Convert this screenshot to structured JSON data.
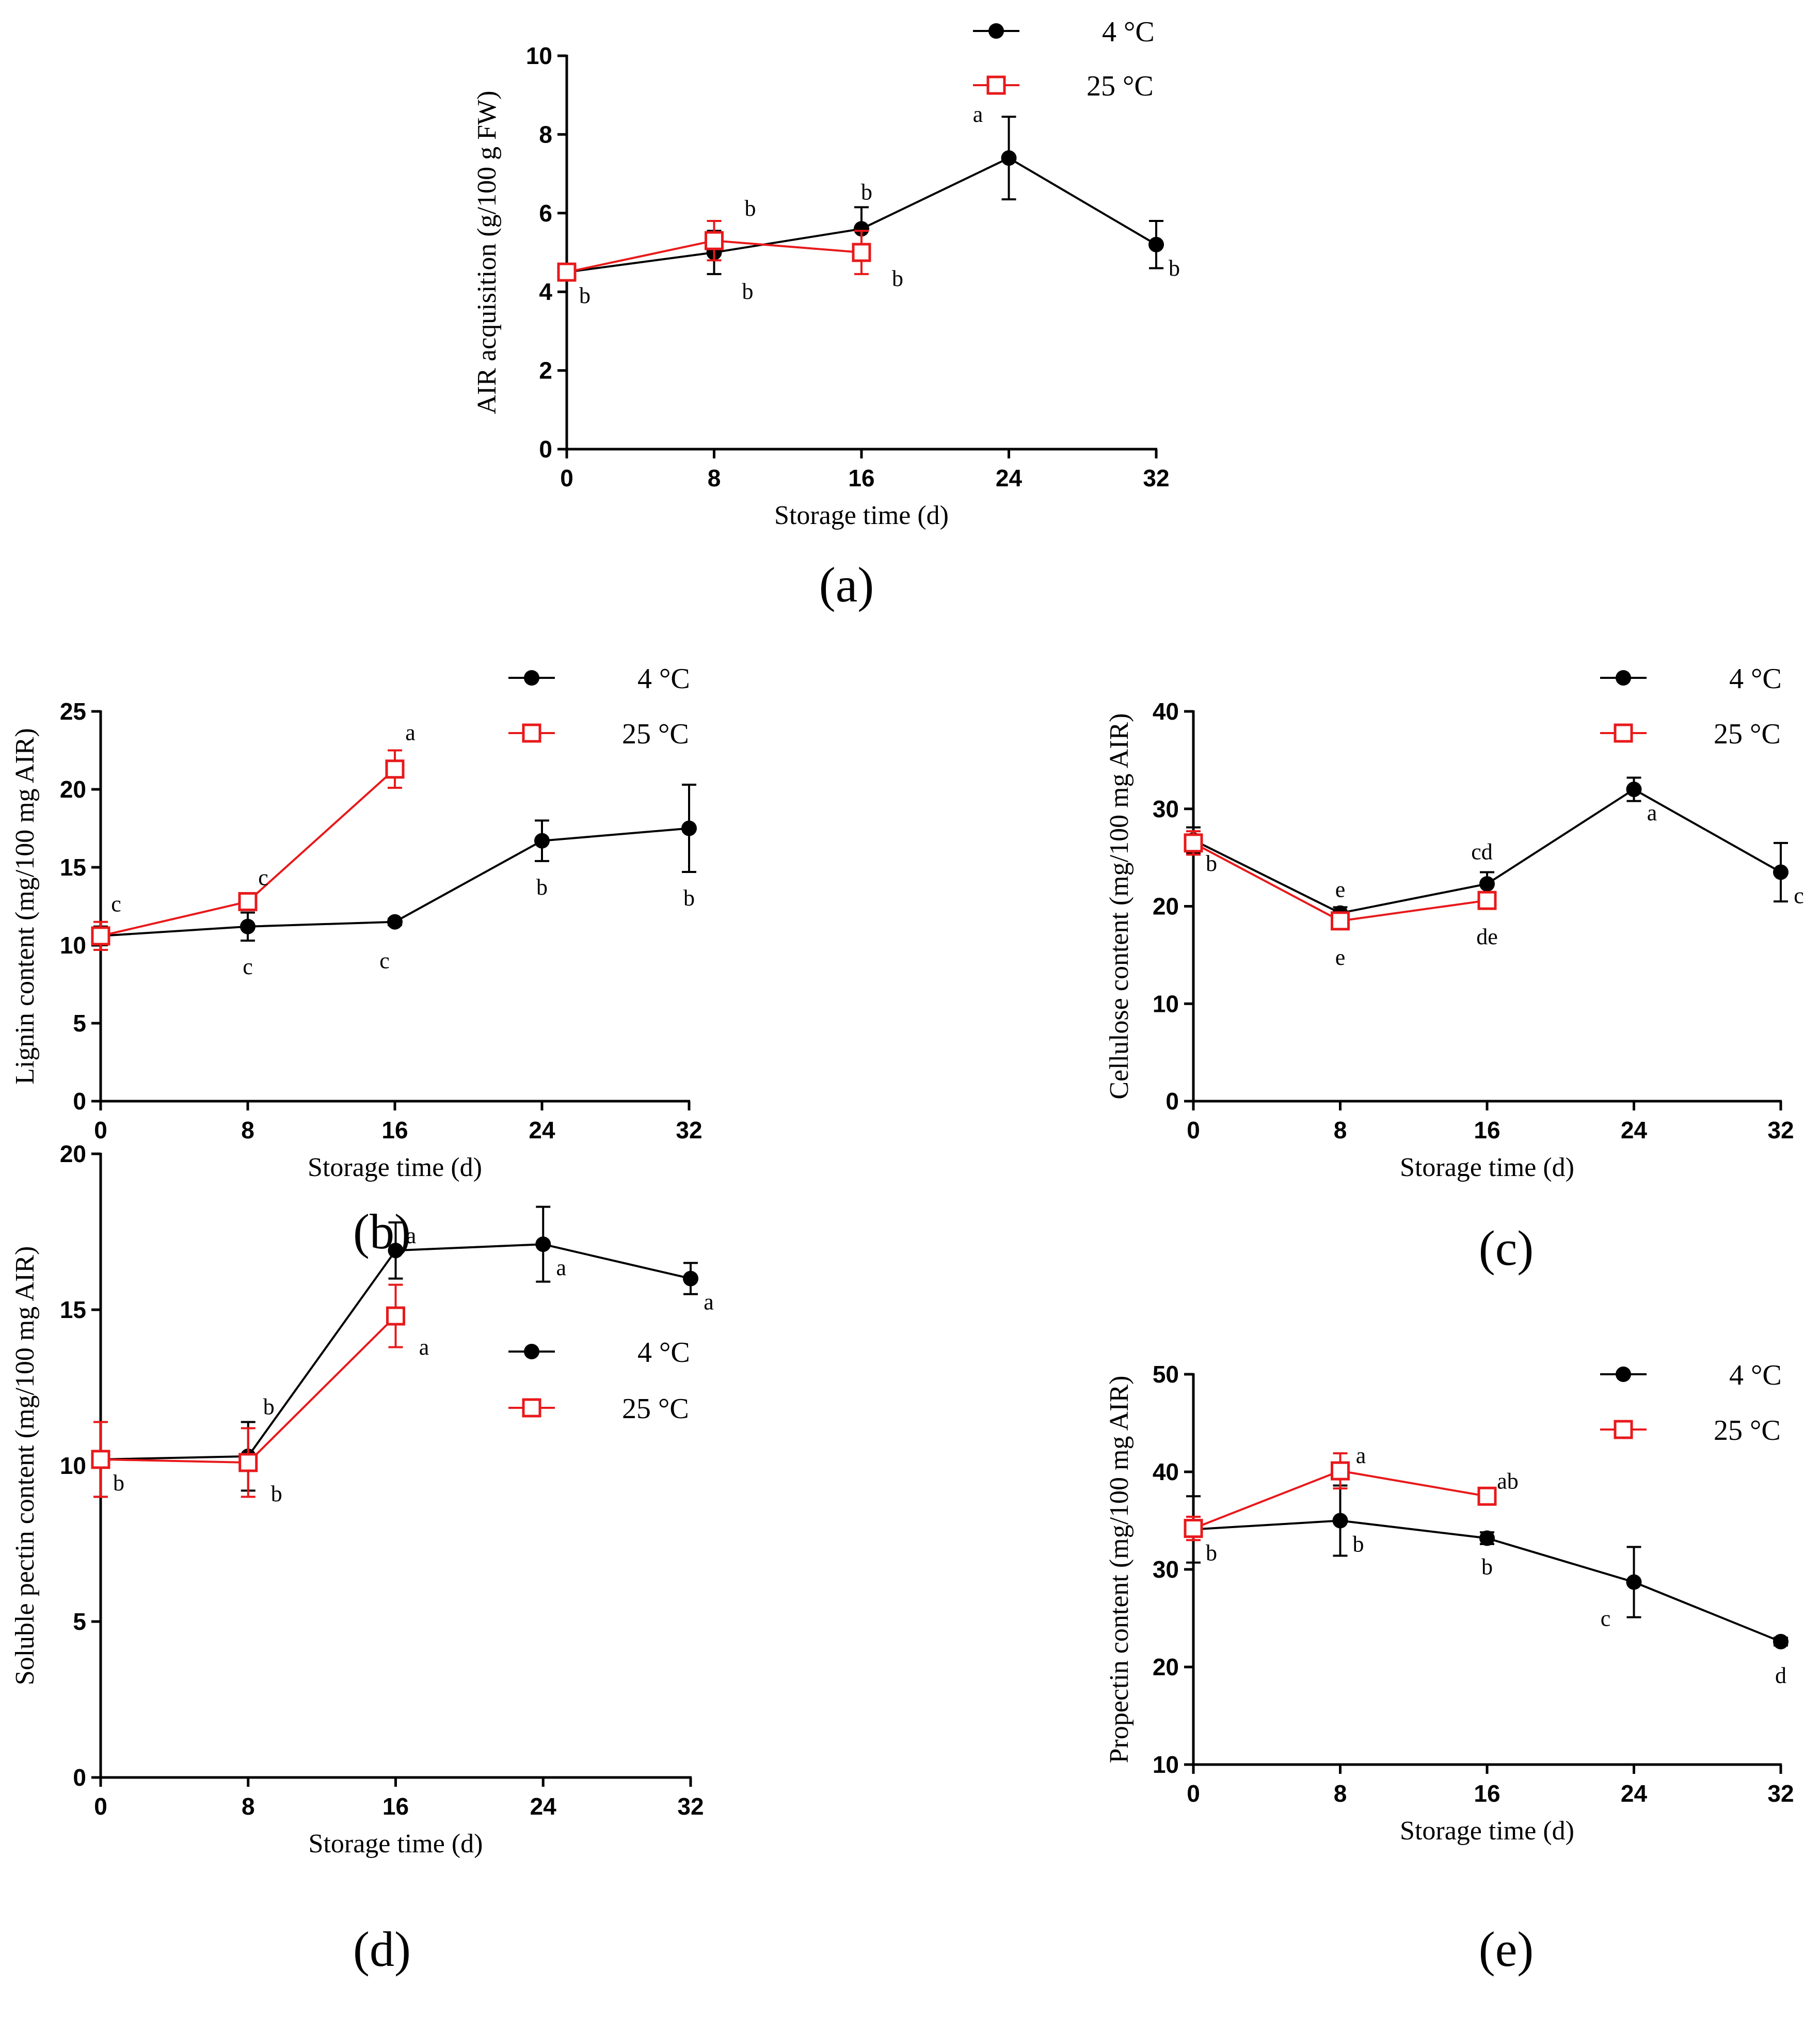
{
  "figure": {
    "x_axis_label": "Storage time (d)",
    "x_ticks": [
      "0",
      "8",
      "16",
      "24",
      "32"
    ],
    "legend": {
      "series_1": "4 °C",
      "series_2": "25 °C"
    }
  },
  "colors": {
    "series_1": "#000000",
    "series_2": "#e8191b"
  },
  "chart_data": [
    {
      "id": "a",
      "panel_label": "(a)",
      "type": "line",
      "ylabel": "AIR acquisition (g/100 g FW)",
      "xlabel": "Storage time (d)",
      "ylim": [
        0,
        10
      ],
      "yticks": [
        "0",
        "2",
        "4",
        "6",
        "8",
        "10"
      ],
      "xlim": [
        0,
        32
      ],
      "xticks": [
        "0",
        "8",
        "16",
        "24",
        "32"
      ],
      "legend_position": "top-right",
      "series": [
        {
          "name": "4 °C",
          "x": [
            0,
            8,
            16,
            24,
            32
          ],
          "values": [
            4.5,
            5.0,
            5.6,
            7.4,
            5.2
          ],
          "errors": [
            0.2,
            0.55,
            0.55,
            1.05,
            0.6
          ],
          "letters": [
            "b",
            "b",
            "b",
            "a",
            "b"
          ]
        },
        {
          "name": "25 °C",
          "x": [
            0,
            8,
            16
          ],
          "values": [
            4.5,
            5.3,
            5.0
          ],
          "errors": [
            0.2,
            0.5,
            0.55
          ],
          "letters": [
            "",
            "b",
            "b"
          ]
        }
      ]
    },
    {
      "id": "b",
      "panel_label": "(b)",
      "type": "line",
      "ylabel": "Lignin content (mg/100 mg AIR)",
      "xlabel": "Storage time (d)",
      "ylim": [
        0,
        25
      ],
      "yticks": [
        "0",
        "5",
        "10",
        "15",
        "20",
        "25"
      ],
      "xlim": [
        0,
        32
      ],
      "xticks": [
        "0",
        "8",
        "16",
        "24",
        "32"
      ],
      "legend_position": "top-right",
      "series": [
        {
          "name": "4 °C",
          "x": [
            0,
            8,
            16,
            24,
            32
          ],
          "values": [
            10.6,
            11.2,
            11.5,
            16.7,
            17.5
          ],
          "errors": [
            0.6,
            0.9,
            0.2,
            1.3,
            2.8
          ],
          "letters": [
            "",
            "c",
            "c",
            "b",
            "b"
          ]
        },
        {
          "name": "25 °C",
          "x": [
            0,
            8,
            16
          ],
          "values": [
            10.6,
            12.8,
            21.3
          ],
          "errors": [
            0.9,
            0.4,
            1.2
          ],
          "letters": [
            "c",
            "c",
            "a"
          ]
        }
      ]
    },
    {
      "id": "c",
      "panel_label": "(c)",
      "type": "line",
      "ylabel": "Cellulose content (mg/100 mg AIR)",
      "xlabel": "Storage time (d)",
      "ylim": [
        0,
        40
      ],
      "yticks": [
        "0",
        "10",
        "20",
        "30",
        "40"
      ],
      "xlim": [
        0,
        32
      ],
      "xticks": [
        "0",
        "8",
        "16",
        "24",
        "32"
      ],
      "legend_position": "top-right",
      "series": [
        {
          "name": "4 °C",
          "x": [
            0,
            8,
            16,
            24,
            32
          ],
          "values": [
            26.8,
            19.3,
            22.3,
            32.0,
            23.5
          ],
          "errors": [
            1.3,
            0.6,
            1.2,
            1.2,
            3.0
          ],
          "letters": [
            "b",
            "e",
            "cd",
            "a",
            "c"
          ]
        },
        {
          "name": "25 °C",
          "x": [
            0,
            8,
            16
          ],
          "values": [
            26.5,
            18.5,
            20.6
          ],
          "errors": [
            1.2,
            0.8,
            0.6
          ],
          "letters": [
            "",
            "e",
            "de"
          ]
        }
      ]
    },
    {
      "id": "d",
      "panel_label": "(d)",
      "type": "line",
      "ylabel": "Soluble pectin content (mg/100 mg AIR)",
      "xlabel": "Storage time (d)",
      "ylim": [
        0,
        20
      ],
      "yticks": [
        "0",
        "5",
        "10",
        "15",
        "20"
      ],
      "xlim": [
        0,
        32
      ],
      "xticks": [
        "0",
        "8",
        "16",
        "24",
        "32"
      ],
      "legend_position": "top-right",
      "series": [
        {
          "name": "4 °C",
          "x": [
            0,
            8,
            16,
            24,
            32
          ],
          "values": [
            10.2,
            10.3,
            16.9,
            17.1,
            16.0
          ],
          "errors": [
            1.2,
            1.1,
            0.9,
            1.2,
            0.5
          ],
          "letters": [
            "b",
            "b",
            "a",
            "a",
            "a"
          ]
        },
        {
          "name": "25 °C",
          "x": [
            0,
            8,
            16
          ],
          "values": [
            10.2,
            10.1,
            14.8
          ],
          "errors": [
            1.2,
            1.1,
            1.0
          ],
          "letters": [
            "",
            "b",
            "a"
          ]
        }
      ]
    },
    {
      "id": "e",
      "panel_label": "(e)",
      "type": "line",
      "ylabel": "Propectin content (mg/100 mg AIR)",
      "xlabel": "Storage time (d)",
      "ylim": [
        10,
        50
      ],
      "yticks": [
        "10",
        "20",
        "30",
        "40",
        "50"
      ],
      "xlim": [
        0,
        32
      ],
      "xticks": [
        "0",
        "8",
        "16",
        "24",
        "32"
      ],
      "legend_position": "top-right",
      "series": [
        {
          "name": "4 °C",
          "x": [
            0,
            8,
            16,
            24,
            32
          ],
          "values": [
            34.1,
            35.0,
            33.2,
            28.7,
            22.6
          ],
          "errors": [
            3.4,
            3.6,
            0.6,
            3.6,
            0.4
          ],
          "letters": [
            "b",
            "b",
            "b",
            "c",
            "d"
          ]
        },
        {
          "name": "25 °C",
          "x": [
            0,
            8,
            16
          ],
          "values": [
            34.2,
            40.1,
            37.5
          ],
          "errors": [
            1.2,
            1.8,
            0.5
          ],
          "letters": [
            "",
            "a",
            "ab"
          ]
        }
      ]
    }
  ]
}
